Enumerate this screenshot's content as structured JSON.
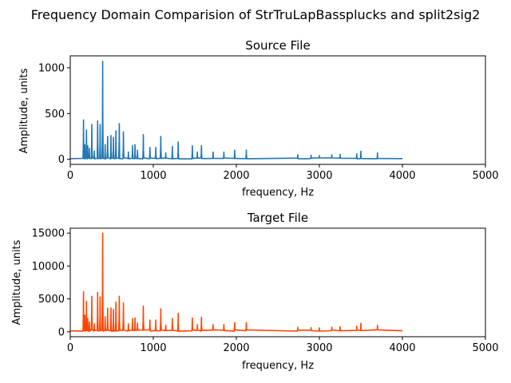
{
  "figure": {
    "suptitle": "Frequency Domain Comparision of StrTruLapBassplucks and split2sig2"
  },
  "chart_data": [
    {
      "type": "line",
      "title": "Source File",
      "xlabel": "frequency, Hz",
      "ylabel": "Amplitude, units",
      "xlim": [
        0,
        5000
      ],
      "ylim": [
        -55,
        1130
      ],
      "xticks": [
        0,
        1000,
        2000,
        3000,
        4000,
        5000
      ],
      "yticks": [
        0,
        500,
        1000
      ],
      "grid": false,
      "legend": "none",
      "color": "#1f77b4",
      "baseline": 8,
      "x_end": 4000,
      "peaks": [
        [
          160,
          430
        ],
        [
          175,
          160
        ],
        [
          195,
          320
        ],
        [
          210,
          150
        ],
        [
          230,
          120
        ],
        [
          260,
          380
        ],
        [
          290,
          90
        ],
        [
          330,
          420
        ],
        [
          360,
          380
        ],
        [
          390,
          1070
        ],
        [
          420,
          160
        ],
        [
          450,
          250
        ],
        [
          490,
          260
        ],
        [
          520,
          240
        ],
        [
          550,
          310
        ],
        [
          590,
          390
        ],
        [
          640,
          300
        ],
        [
          700,
          80
        ],
        [
          750,
          150
        ],
        [
          780,
          160
        ],
        [
          810,
          100
        ],
        [
          880,
          270
        ],
        [
          960,
          130
        ],
        [
          1030,
          130
        ],
        [
          1090,
          250
        ],
        [
          1150,
          70
        ],
        [
          1230,
          140
        ],
        [
          1300,
          190
        ],
        [
          1470,
          150
        ],
        [
          1530,
          80
        ],
        [
          1580,
          150
        ],
        [
          1720,
          80
        ],
        [
          1850,
          80
        ],
        [
          1980,
          100
        ],
        [
          2120,
          100
        ],
        [
          2740,
          50
        ],
        [
          2900,
          45
        ],
        [
          3000,
          40
        ],
        [
          3150,
          50
        ],
        [
          3250,
          55
        ],
        [
          3450,
          60
        ],
        [
          3500,
          90
        ],
        [
          3700,
          70
        ]
      ]
    },
    {
      "type": "line",
      "title": "Target File",
      "xlabel": "frequency, Hz",
      "ylabel": "Amplitude, units",
      "xlim": [
        0,
        5000
      ],
      "ylim": [
        -750,
        15750
      ],
      "xticks": [
        0,
        1000,
        2000,
        3000,
        4000,
        5000
      ],
      "yticks": [
        0,
        5000,
        10000,
        15000
      ],
      "grid": false,
      "legend": "none",
      "color": "#ff4500",
      "baseline": 150,
      "x_end": 4000,
      "peaks": [
        [
          160,
          6100
        ],
        [
          175,
          2500
        ],
        [
          195,
          4600
        ],
        [
          210,
          2000
        ],
        [
          230,
          1500
        ],
        [
          260,
          5400
        ],
        [
          290,
          1200
        ],
        [
          330,
          6000
        ],
        [
          360,
          5300
        ],
        [
          390,
          15000
        ],
        [
          420,
          2300
        ],
        [
          450,
          3600
        ],
        [
          490,
          3600
        ],
        [
          520,
          3400
        ],
        [
          550,
          4500
        ],
        [
          590,
          5400
        ],
        [
          640,
          4400
        ],
        [
          700,
          1200
        ],
        [
          750,
          2000
        ],
        [
          780,
          2100
        ],
        [
          810,
          1300
        ],
        [
          880,
          3900
        ],
        [
          960,
          1800
        ],
        [
          1030,
          1800
        ],
        [
          1090,
          3500
        ],
        [
          1150,
          1000
        ],
        [
          1230,
          2000
        ],
        [
          1300,
          2800
        ],
        [
          1470,
          2100
        ],
        [
          1530,
          1100
        ],
        [
          1580,
          2200
        ],
        [
          1720,
          1100
        ],
        [
          1850,
          1100
        ],
        [
          1980,
          1400
        ],
        [
          2120,
          1400
        ],
        [
          2740,
          700
        ],
        [
          2900,
          650
        ],
        [
          3000,
          600
        ],
        [
          3150,
          700
        ],
        [
          3250,
          750
        ],
        [
          3450,
          850
        ],
        [
          3500,
          1300
        ],
        [
          3700,
          1000
        ]
      ]
    }
  ]
}
